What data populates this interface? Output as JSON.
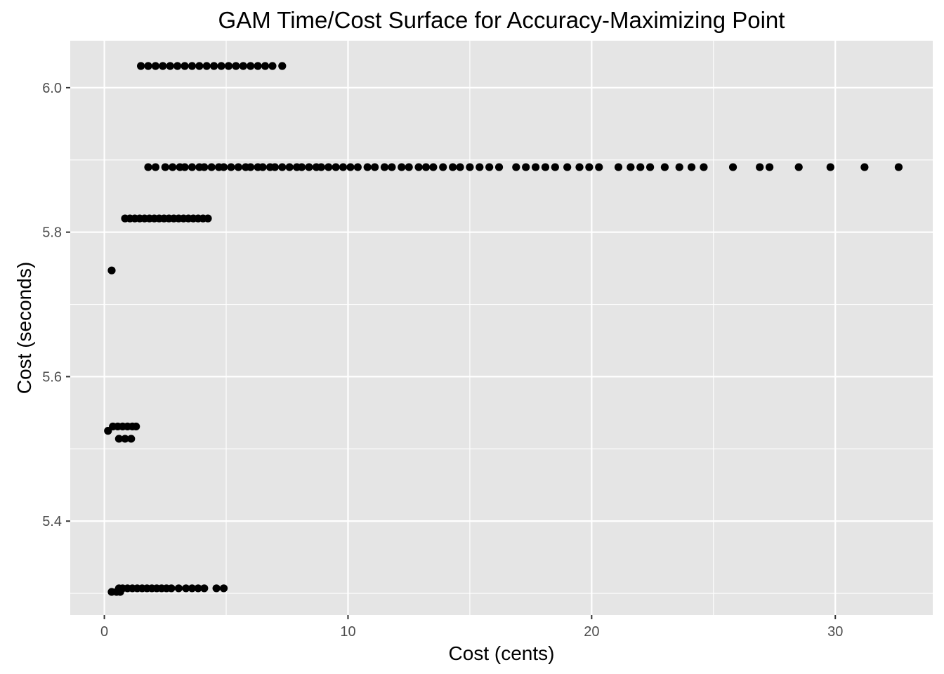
{
  "chart_data": {
    "type": "scatter",
    "title": "GAM Time/Cost Surface for Accuracy-Maximizing Point",
    "xlabel": "Cost (cents)",
    "ylabel": "Cost (seconds)",
    "xlim": [
      -1.4,
      34.0
    ],
    "ylim": [
      5.27,
      6.065
    ],
    "x_ticks": [
      0,
      10,
      20,
      30
    ],
    "y_ticks": [
      5.4,
      5.6,
      5.8,
      6.0
    ],
    "x_tick_labels": [
      "0",
      "10",
      "20",
      "30"
    ],
    "y_tick_labels": [
      "5.4",
      "5.6",
      "5.8",
      "6.0"
    ],
    "grid": true,
    "legend": "none",
    "point_color": "#000000",
    "panel_background": "#e5e5e5",
    "series": [
      {
        "points": [
          {
            "x": 1.5,
            "y": 6.03
          },
          {
            "x": 1.8,
            "y": 6.03
          },
          {
            "x": 2.1,
            "y": 6.03
          },
          {
            "x": 2.4,
            "y": 6.03
          },
          {
            "x": 2.7,
            "y": 6.03
          },
          {
            "x": 3.0,
            "y": 6.03
          },
          {
            "x": 3.3,
            "y": 6.03
          },
          {
            "x": 3.6,
            "y": 6.03
          },
          {
            "x": 3.9,
            "y": 6.03
          },
          {
            "x": 4.2,
            "y": 6.03
          },
          {
            "x": 4.5,
            "y": 6.03
          },
          {
            "x": 4.8,
            "y": 6.03
          },
          {
            "x": 5.1,
            "y": 6.03
          },
          {
            "x": 5.4,
            "y": 6.03
          },
          {
            "x": 5.7,
            "y": 6.03
          },
          {
            "x": 6.0,
            "y": 6.03
          },
          {
            "x": 6.3,
            "y": 6.03
          },
          {
            "x": 6.6,
            "y": 6.03
          },
          {
            "x": 6.9,
            "y": 6.03
          },
          {
            "x": 7.3,
            "y": 6.03
          },
          {
            "x": 1.8,
            "y": 5.89
          },
          {
            "x": 2.1,
            "y": 5.89
          },
          {
            "x": 2.5,
            "y": 5.89
          },
          {
            "x": 2.8,
            "y": 5.89
          },
          {
            "x": 3.1,
            "y": 5.89
          },
          {
            "x": 3.3,
            "y": 5.89
          },
          {
            "x": 3.6,
            "y": 5.89
          },
          {
            "x": 3.9,
            "y": 5.89
          },
          {
            "x": 4.1,
            "y": 5.89
          },
          {
            "x": 4.4,
            "y": 5.89
          },
          {
            "x": 4.7,
            "y": 5.89
          },
          {
            "x": 4.9,
            "y": 5.89
          },
          {
            "x": 5.2,
            "y": 5.89
          },
          {
            "x": 5.5,
            "y": 5.89
          },
          {
            "x": 5.8,
            "y": 5.89
          },
          {
            "x": 6.0,
            "y": 5.89
          },
          {
            "x": 6.3,
            "y": 5.89
          },
          {
            "x": 6.5,
            "y": 5.89
          },
          {
            "x": 6.8,
            "y": 5.89
          },
          {
            "x": 7.0,
            "y": 5.89
          },
          {
            "x": 7.3,
            "y": 5.89
          },
          {
            "x": 7.6,
            "y": 5.89
          },
          {
            "x": 7.9,
            "y": 5.89
          },
          {
            "x": 8.1,
            "y": 5.89
          },
          {
            "x": 8.4,
            "y": 5.89
          },
          {
            "x": 8.7,
            "y": 5.89
          },
          {
            "x": 8.9,
            "y": 5.89
          },
          {
            "x": 9.2,
            "y": 5.89
          },
          {
            "x": 9.5,
            "y": 5.89
          },
          {
            "x": 9.8,
            "y": 5.89
          },
          {
            "x": 10.1,
            "y": 5.89
          },
          {
            "x": 10.4,
            "y": 5.89
          },
          {
            "x": 10.8,
            "y": 5.89
          },
          {
            "x": 11.1,
            "y": 5.89
          },
          {
            "x": 11.5,
            "y": 5.89
          },
          {
            "x": 11.8,
            "y": 5.89
          },
          {
            "x": 12.2,
            "y": 5.89
          },
          {
            "x": 12.5,
            "y": 5.89
          },
          {
            "x": 12.9,
            "y": 5.89
          },
          {
            "x": 13.2,
            "y": 5.89
          },
          {
            "x": 13.5,
            "y": 5.89
          },
          {
            "x": 13.9,
            "y": 5.89
          },
          {
            "x": 14.3,
            "y": 5.89
          },
          {
            "x": 14.6,
            "y": 5.89
          },
          {
            "x": 15.0,
            "y": 5.89
          },
          {
            "x": 15.4,
            "y": 5.89
          },
          {
            "x": 15.8,
            "y": 5.89
          },
          {
            "x": 16.2,
            "y": 5.89
          },
          {
            "x": 16.9,
            "y": 5.89
          },
          {
            "x": 17.3,
            "y": 5.89
          },
          {
            "x": 17.7,
            "y": 5.89
          },
          {
            "x": 18.1,
            "y": 5.89
          },
          {
            "x": 18.5,
            "y": 5.89
          },
          {
            "x": 19.0,
            "y": 5.89
          },
          {
            "x": 19.5,
            "y": 5.89
          },
          {
            "x": 19.9,
            "y": 5.89
          },
          {
            "x": 20.3,
            "y": 5.89
          },
          {
            "x": 21.1,
            "y": 5.89
          },
          {
            "x": 21.6,
            "y": 5.89
          },
          {
            "x": 22.0,
            "y": 5.89
          },
          {
            "x": 22.4,
            "y": 5.89
          },
          {
            "x": 23.0,
            "y": 5.89
          },
          {
            "x": 23.6,
            "y": 5.89
          },
          {
            "x": 24.1,
            "y": 5.89
          },
          {
            "x": 24.6,
            "y": 5.89
          },
          {
            "x": 25.8,
            "y": 5.89
          },
          {
            "x": 26.9,
            "y": 5.89
          },
          {
            "x": 27.3,
            "y": 5.89
          },
          {
            "x": 28.5,
            "y": 5.89
          },
          {
            "x": 29.8,
            "y": 5.89
          },
          {
            "x": 31.2,
            "y": 5.89
          },
          {
            "x": 32.6,
            "y": 5.89
          },
          {
            "x": 0.85,
            "y": 5.819
          },
          {
            "x": 1.05,
            "y": 5.819
          },
          {
            "x": 1.25,
            "y": 5.819
          },
          {
            "x": 1.45,
            "y": 5.819
          },
          {
            "x": 1.65,
            "y": 5.819
          },
          {
            "x": 1.85,
            "y": 5.819
          },
          {
            "x": 2.05,
            "y": 5.819
          },
          {
            "x": 2.25,
            "y": 5.819
          },
          {
            "x": 2.45,
            "y": 5.819
          },
          {
            "x": 2.65,
            "y": 5.819
          },
          {
            "x": 2.85,
            "y": 5.819
          },
          {
            "x": 3.05,
            "y": 5.819
          },
          {
            "x": 3.25,
            "y": 5.819
          },
          {
            "x": 3.45,
            "y": 5.819
          },
          {
            "x": 3.65,
            "y": 5.819
          },
          {
            "x": 3.85,
            "y": 5.819
          },
          {
            "x": 4.05,
            "y": 5.819
          },
          {
            "x": 4.25,
            "y": 5.819
          },
          {
            "x": 0.3,
            "y": 5.747
          },
          {
            "x": 0.15,
            "y": 5.525
          },
          {
            "x": 0.35,
            "y": 5.531
          },
          {
            "x": 0.55,
            "y": 5.531
          },
          {
            "x": 0.75,
            "y": 5.531
          },
          {
            "x": 0.95,
            "y": 5.531
          },
          {
            "x": 1.15,
            "y": 5.531
          },
          {
            "x": 1.3,
            "y": 5.531
          },
          {
            "x": 0.6,
            "y": 5.514
          },
          {
            "x": 0.85,
            "y": 5.514
          },
          {
            "x": 1.1,
            "y": 5.514
          },
          {
            "x": 0.3,
            "y": 5.302
          },
          {
            "x": 0.5,
            "y": 5.302
          },
          {
            "x": 0.65,
            "y": 5.302
          },
          {
            "x": 0.6,
            "y": 5.307
          },
          {
            "x": 0.75,
            "y": 5.307
          },
          {
            "x": 0.95,
            "y": 5.307
          },
          {
            "x": 1.15,
            "y": 5.307
          },
          {
            "x": 1.35,
            "y": 5.307
          },
          {
            "x": 1.55,
            "y": 5.307
          },
          {
            "x": 1.75,
            "y": 5.307
          },
          {
            "x": 1.95,
            "y": 5.307
          },
          {
            "x": 2.15,
            "y": 5.307
          },
          {
            "x": 2.35,
            "y": 5.307
          },
          {
            "x": 2.55,
            "y": 5.307
          },
          {
            "x": 2.75,
            "y": 5.307
          },
          {
            "x": 3.05,
            "y": 5.307
          },
          {
            "x": 3.35,
            "y": 5.307
          },
          {
            "x": 3.6,
            "y": 5.307
          },
          {
            "x": 3.85,
            "y": 5.307
          },
          {
            "x": 4.1,
            "y": 5.307
          },
          {
            "x": 4.6,
            "y": 5.307
          },
          {
            "x": 4.9,
            "y": 5.307
          }
        ]
      }
    ]
  }
}
